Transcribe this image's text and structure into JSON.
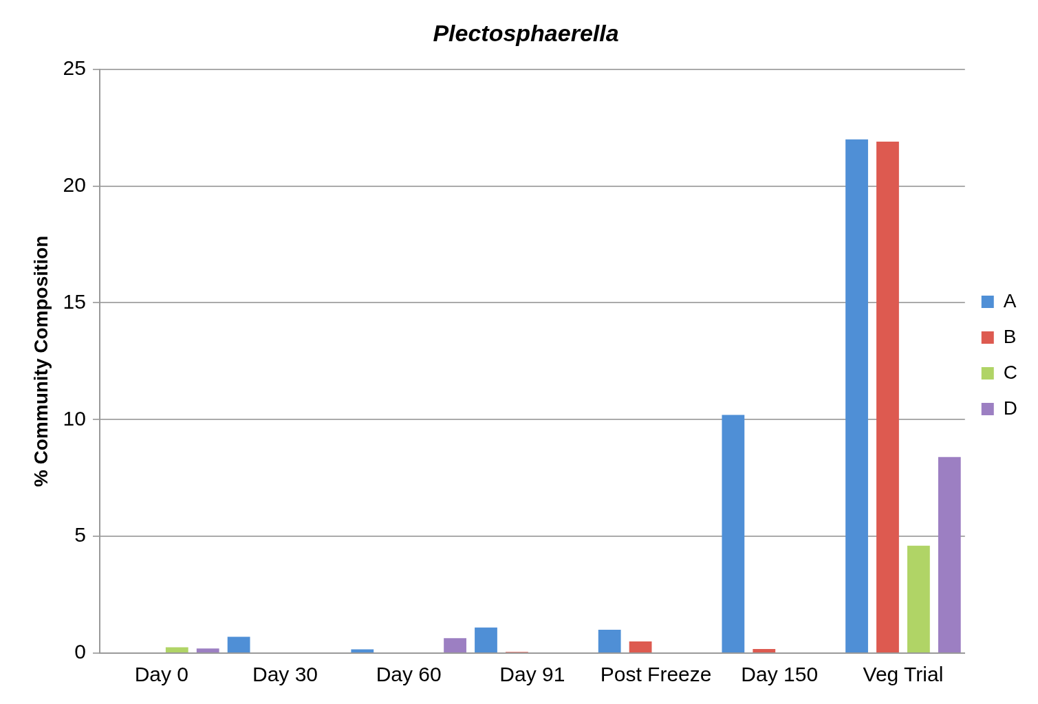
{
  "chart_data": {
    "type": "bar",
    "title": "Plectosphaerella",
    "ylabel": "% Community Composition",
    "categories": [
      "Day 0",
      "Day 30",
      "Day 60",
      "Day 91",
      "Post Freeze",
      "Day 150",
      "Veg Trial"
    ],
    "series": [
      {
        "name": "A",
        "color": "#4f8fd6",
        "values": [
          0,
          0.7,
          0.16,
          1.1,
          1.0,
          10.2,
          22.0
        ]
      },
      {
        "name": "B",
        "color": "#dd5a50",
        "values": [
          0,
          0,
          0.03,
          0.05,
          0.5,
          0.18,
          21.9
        ]
      },
      {
        "name": "C",
        "color": "#b0d466",
        "values": [
          0.25,
          0,
          0,
          0,
          0,
          0,
          4.6
        ]
      },
      {
        "name": "D",
        "color": "#9c7fc2",
        "values": [
          0.2,
          0,
          0.64,
          0,
          0,
          0,
          8.4
        ]
      }
    ],
    "ylim": [
      0,
      25
    ],
    "yticks": [
      0,
      5,
      10,
      15,
      20,
      25
    ],
    "grid": "y",
    "legend": "right"
  }
}
